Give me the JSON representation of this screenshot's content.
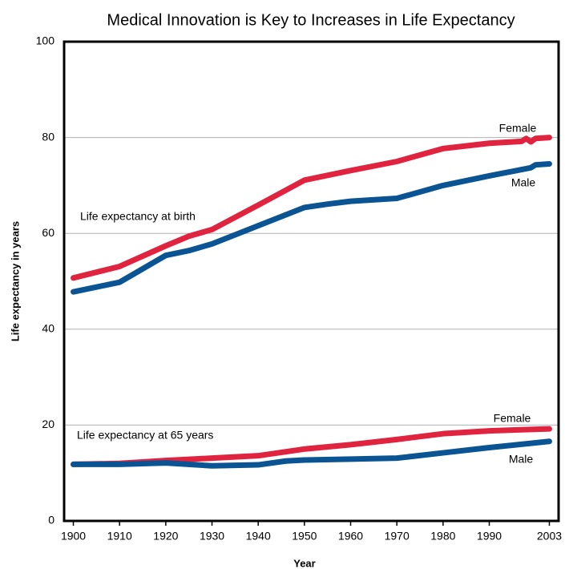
{
  "chart_data": {
    "type": "line",
    "title": "Medical Innovation is Key to Increases in Life Expectancy",
    "xlabel": "Year",
    "ylabel": "Life expectancy in years",
    "annotations": [
      "Life expectancy at birth",
      "Life expectancy at 65 years"
    ],
    "xlim": [
      1898,
      2005
    ],
    "ylim": [
      0,
      100
    ],
    "xticks": [
      1900,
      1910,
      1920,
      1930,
      1940,
      1950,
      1960,
      1970,
      1980,
      1990,
      2003
    ],
    "yticks": [
      0,
      20,
      40,
      60,
      80,
      100
    ],
    "grid": true,
    "series": [
      {
        "name": "Female",
        "color": "#e0243f",
        "x": [
          1900,
          1910,
          1920,
          1925,
          1930,
          1940,
          1950,
          1960,
          1970,
          1980,
          1990,
          1997,
          1998,
          1999,
          2000,
          2003
        ],
        "values": [
          50.7,
          53.1,
          57.4,
          59.4,
          60.8,
          65.9,
          71.1,
          73.1,
          75.0,
          77.7,
          78.8,
          79.2,
          79.8,
          79.1,
          79.8,
          80.0
        ]
      },
      {
        "name": "Male",
        "color": "#0b5494",
        "x": [
          1900,
          1910,
          1920,
          1925,
          1930,
          1940,
          1950,
          1955,
          1960,
          1970,
          1980,
          1990,
          1999,
          2000,
          2003
        ],
        "values": [
          47.8,
          49.8,
          55.4,
          56.4,
          57.8,
          61.6,
          65.4,
          66.1,
          66.7,
          67.3,
          70.0,
          72.0,
          73.7,
          74.3,
          74.5
        ]
      },
      {
        "name": "Female",
        "color": "#e0243f",
        "x": [
          1900,
          1910,
          1920,
          1930,
          1940,
          1950,
          1960,
          1970,
          1980,
          1990,
          2003
        ],
        "values": [
          11.8,
          12.0,
          12.6,
          13.1,
          13.6,
          15.0,
          15.9,
          17.0,
          18.2,
          18.8,
          19.2
        ]
      },
      {
        "name": "Male",
        "color": "#0b5494",
        "x": [
          1900,
          1910,
          1920,
          1930,
          1940,
          1946,
          1950,
          1960,
          1970,
          1980,
          1990,
          2003
        ],
        "values": [
          11.8,
          11.8,
          12.1,
          11.5,
          11.7,
          12.5,
          12.7,
          12.9,
          13.1,
          14.2,
          15.3,
          16.6
        ]
      }
    ]
  }
}
